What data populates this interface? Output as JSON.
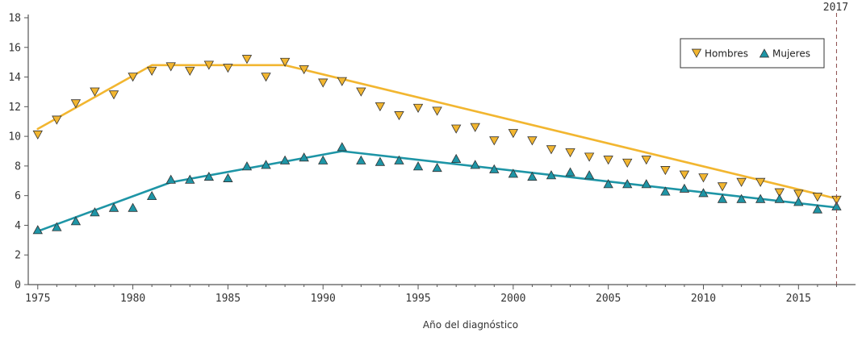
{
  "chart_data": {
    "type": "scatter",
    "title": "",
    "xlabel": "Año del diagnóstico",
    "ylabel": "",
    "xlim": [
      1974.5,
      2018
    ],
    "ylim": [
      0,
      18
    ],
    "x_ticks": [
      1975,
      1980,
      1985,
      1990,
      1995,
      2000,
      2005,
      2010,
      2015
    ],
    "y_ticks": [
      0,
      2,
      4,
      6,
      8,
      10,
      12,
      14,
      16,
      18
    ],
    "grid": false,
    "legend_position": "top-right",
    "reference_line": {
      "x": 2017,
      "label": "2017",
      "style": "dashed"
    },
    "series": [
      {
        "name": "Hombres",
        "color": "#F2B630",
        "marker": "triangle-down",
        "x": [
          1975,
          1976,
          1977,
          1978,
          1979,
          1980,
          1981,
          1982,
          1983,
          1984,
          1985,
          1986,
          1987,
          1988,
          1989,
          1990,
          1991,
          1992,
          1993,
          1994,
          1995,
          1996,
          1997,
          1998,
          1999,
          2000,
          2001,
          2002,
          2003,
          2004,
          2005,
          2006,
          2007,
          2008,
          2009,
          2010,
          2011,
          2012,
          2013,
          2014,
          2015,
          2016,
          2017
        ],
        "values": [
          10.1,
          11.1,
          12.2,
          13.0,
          12.8,
          14.0,
          14.4,
          14.7,
          14.4,
          14.8,
          14.6,
          15.2,
          14.0,
          15.0,
          14.5,
          13.6,
          13.7,
          13.0,
          12.0,
          11.4,
          11.9,
          11.7,
          10.5,
          10.6,
          9.7,
          10.2,
          9.7,
          9.1,
          8.9,
          8.6,
          8.4,
          8.2,
          8.4,
          7.7,
          7.4,
          7.2,
          6.6,
          6.9,
          6.9,
          6.2,
          6.1,
          5.9,
          5.7
        ],
        "trend": {
          "x": [
            1975,
            1981,
            1988,
            2017
          ],
          "values": [
            10.5,
            14.8,
            14.8,
            5.8
          ]
        }
      },
      {
        "name": "Mujeres",
        "color": "#1E95A6",
        "marker": "triangle-up",
        "x": [
          1975,
          1976,
          1977,
          1978,
          1979,
          1980,
          1981,
          1982,
          1983,
          1984,
          1985,
          1986,
          1987,
          1988,
          1989,
          1990,
          1991,
          1992,
          1993,
          1994,
          1995,
          1996,
          1997,
          1998,
          1999,
          2000,
          2001,
          2002,
          2003,
          2004,
          2005,
          2006,
          2007,
          2008,
          2009,
          2010,
          2011,
          2012,
          2013,
          2014,
          2015,
          2016,
          2017
        ],
        "values": [
          3.7,
          3.9,
          4.3,
          4.9,
          5.2,
          5.2,
          6.0,
          7.1,
          7.1,
          7.3,
          7.2,
          8.0,
          8.1,
          8.4,
          8.6,
          8.4,
          9.3,
          8.4,
          8.3,
          8.4,
          8.0,
          7.9,
          8.5,
          8.1,
          7.8,
          7.5,
          7.3,
          7.4,
          7.6,
          7.4,
          6.8,
          6.8,
          6.8,
          6.3,
          6.5,
          6.2,
          5.8,
          5.8,
          5.8,
          5.8,
          5.6,
          5.1,
          5.3
        ],
        "trend": {
          "x": [
            1975,
            1982,
            1991,
            2017
          ],
          "values": [
            3.6,
            6.9,
            9.0,
            5.2
          ]
        }
      }
    ]
  }
}
